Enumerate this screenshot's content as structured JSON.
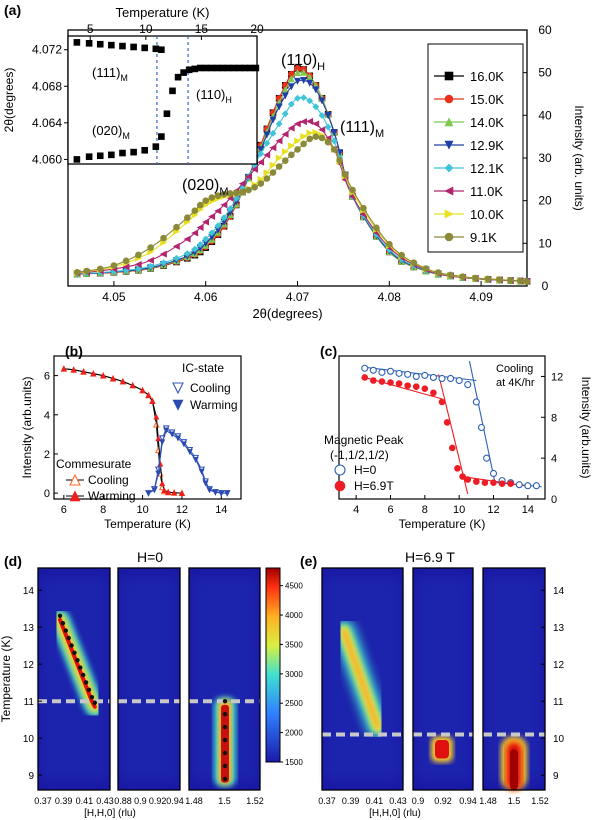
{
  "chart_data": [
    {
      "panel": "a",
      "type": "line",
      "xlabel": "2θ(degrees)",
      "ylabel": "Intensity (arb. units)",
      "xlim": [
        4.045,
        4.095
      ],
      "ylim": [
        0,
        60
      ],
      "x_ticks": [
        "4.05",
        "4.06",
        "4.07",
        "4.08",
        "4.09"
      ],
      "y_ticks": [
        "0",
        "10",
        "20",
        "30",
        "40",
        "50",
        "60"
      ],
      "x": [
        4.046,
        4.05,
        4.054,
        4.058,
        4.06,
        4.062,
        4.064,
        4.066,
        4.068,
        4.07,
        4.072,
        4.074,
        4.076,
        4.08,
        4.084,
        4.088,
        4.092,
        4.095
      ],
      "series": [
        {
          "name": "16.0K",
          "color": "#000000",
          "marker": "square",
          "values": [
            2.8,
            3.2,
            4.1,
            6.5,
            9.0,
            14,
            22,
            33,
            44,
            51,
            47,
            36,
            21,
            8,
            3.5,
            2,
            1.4,
            1.1
          ]
        },
        {
          "name": "15.0K",
          "color": "#e8301a",
          "marker": "circle",
          "values": [
            2.8,
            3.2,
            4.1,
            6.6,
            9.2,
            14,
            22,
            33,
            44,
            51,
            47,
            36,
            21,
            8,
            3.5,
            2,
            1.4,
            1.1
          ]
        },
        {
          "name": "14.0K",
          "color": "#7ec850",
          "marker": "triangle-up",
          "values": [
            2.8,
            3.3,
            4.2,
            6.8,
            9.5,
            14.5,
            22,
            32.5,
            43,
            50,
            47,
            36,
            21,
            8,
            3.5,
            2,
            1.4,
            1.1
          ]
        },
        {
          "name": "12.9K",
          "color": "#1f3fa8",
          "marker": "triangle-down",
          "values": [
            2.8,
            3.3,
            4.3,
            7.0,
            10,
            15,
            22.5,
            32,
            42,
            48,
            46,
            36,
            21,
            8.2,
            3.6,
            2,
            1.4,
            1.1
          ]
        },
        {
          "name": "12.1K",
          "color": "#3fc4d8",
          "marker": "diamond",
          "values": [
            2.9,
            3.4,
            4.6,
            7.6,
            11,
            16,
            23,
            31,
            38,
            44,
            42,
            34,
            21,
            8.5,
            3.7,
            2,
            1.4,
            1.1
          ]
        },
        {
          "name": "11.0K",
          "color": "#b2246e",
          "marker": "triangle-left",
          "values": [
            3.0,
            4.0,
            6.0,
            11,
            15,
            19,
            24,
            29,
            34,
            38,
            38,
            32,
            21,
            9,
            3.8,
            2,
            1.4,
            1.1
          ]
        },
        {
          "name": "10.0K",
          "color": "#e8e020",
          "marker": "triangle-right",
          "values": [
            3.1,
            4.5,
            8,
            15,
            19,
            21,
            22,
            25,
            30,
            34,
            36,
            32,
            22,
            9.5,
            4,
            2.1,
            1.5,
            1.1
          ]
        },
        {
          "name": "9.1K",
          "color": "#8a8a3a",
          "marker": "circle",
          "values": [
            3.2,
            4.8,
            9,
            16,
            20,
            21.5,
            22,
            24,
            28,
            32,
            35,
            32,
            22.5,
            9.8,
            4.1,
            2.2,
            1.5,
            1.1
          ]
        }
      ],
      "annotations": [
        "(110)",
        "H",
        "(111)",
        "M",
        "(020)",
        "M"
      ],
      "inset": {
        "xlabel": "Temperature (K)",
        "ylabel": "2θ(degrees)",
        "xlim": [
          3,
          20
        ],
        "ylim": [
          4.0595,
          4.0735
        ],
        "x_ticks": [
          "5",
          "10",
          "15",
          "20"
        ],
        "y_ticks": [
          "4.060",
          "4.064",
          "4.068",
          "4.072"
        ],
        "vlines": [
          11.0,
          13.8
        ],
        "series": [
          {
            "name": "(111)M",
            "x": [
              3.8,
              4.9,
              5.9,
              6.9,
              7.9,
              8.9,
              9.9,
              10.9,
              11.4
            ],
            "values": [
              4.0728,
              4.0727,
              4.0726,
              4.0725,
              4.0724,
              4.0723,
              4.0722,
              4.0721,
              4.072
            ]
          },
          {
            "name": "(020)M",
            "x": [
              3.8,
              4.9,
              5.9,
              6.9,
              7.9,
              8.9,
              9.9,
              10.9
            ],
            "values": [
              4.06,
              4.0603,
              4.0604,
              4.0605,
              4.0607,
              4.0608,
              4.061,
              4.0614
            ]
          },
          {
            "name": "(110)H",
            "x": [
              11.4,
              11.9,
              12.4,
              12.9,
              13.4,
              13.9,
              14.4,
              14.9,
              15.4,
              15.9,
              16.4,
              16.9,
              17.4,
              17.9,
              18.4,
              18.9,
              19.4,
              19.9
            ],
            "values": [
              4.0625,
              4.065,
              4.0675,
              4.069,
              4.0695,
              4.0698,
              4.0699,
              4.07,
              4.07,
              4.07,
              4.07,
              4.07,
              4.07,
              4.07,
              4.07,
              4.07,
              4.07,
              4.07
            ]
          }
        ],
        "annotations": [
          "(111)",
          "M",
          "(110)",
          "H",
          "(020)",
          "M"
        ]
      }
    },
    {
      "panel": "b",
      "type": "line",
      "xlabel": "Temperature (K)",
      "ylabel": "Intensity (arb.units)",
      "xlim": [
        5.5,
        15
      ],
      "ylim": [
        -0.3,
        7
      ],
      "x_ticks": [
        "6",
        "8",
        "10",
        "12",
        "14"
      ],
      "y_ticks": [
        "0",
        "2",
        "4",
        "6"
      ],
      "legend_groups": [
        "Commesurate",
        "IC-state"
      ],
      "series": [
        {
          "name": "Cooling",
          "group": "Commesurate",
          "color": "#ff6a2a",
          "marker": "open-triangle-up",
          "x": [
            6,
            6.5,
            7,
            7.5,
            8,
            8.5,
            9,
            9.5,
            10,
            10.3,
            10.5,
            10.7,
            10.8,
            10.9,
            11,
            11.1,
            11.3,
            11.6,
            12
          ],
          "values": [
            6.35,
            6.3,
            6.2,
            6.1,
            6.0,
            5.85,
            5.7,
            5.5,
            5.25,
            5.0,
            4.7,
            3.5,
            2.2,
            1.0,
            0.3,
            0.1,
            0.05,
            0.02,
            0
          ]
        },
        {
          "name": "Warming",
          "group": "Commesurate",
          "color": "#f01e1e",
          "marker": "triangle-up",
          "x": [
            6,
            6.5,
            7,
            7.5,
            8,
            8.5,
            9,
            9.5,
            10,
            10.3,
            10.5,
            10.7,
            10.8,
            10.9,
            11,
            11.1,
            11.3,
            11.6,
            12
          ],
          "values": [
            6.35,
            6.3,
            6.2,
            6.1,
            6.0,
            5.85,
            5.7,
            5.5,
            5.25,
            5.0,
            4.7,
            3.9,
            2.8,
            1.5,
            0.5,
            0.15,
            0.05,
            0.02,
            0
          ]
        },
        {
          "name": "Cooling",
          "group": "IC-state",
          "color": "#3355bb",
          "marker": "open-triangle-down",
          "x": [
            10.3,
            10.6,
            10.8,
            11,
            11.2,
            11.5,
            11.8,
            12.1,
            12.4,
            12.7,
            13,
            13.2,
            13.4,
            13.7,
            14,
            14.3
          ],
          "values": [
            0,
            0.2,
            1.2,
            2.8,
            3.3,
            3.1,
            2.9,
            2.6,
            2.2,
            1.8,
            1.2,
            0.6,
            0.2,
            0.05,
            0,
            0
          ]
        },
        {
          "name": "Warming",
          "group": "IC-state",
          "color": "#2a4bb0",
          "marker": "triangle-down",
          "x": [
            10.3,
            10.6,
            10.8,
            11,
            11.2,
            11.5,
            11.8,
            12.1,
            12.4,
            12.7,
            13,
            13.2,
            13.4,
            13.7,
            14,
            14.3
          ],
          "values": [
            0,
            0.15,
            1.0,
            2.6,
            3.2,
            3.0,
            2.8,
            2.5,
            2.1,
            1.7,
            1.1,
            0.5,
            0.15,
            0.05,
            0,
            0
          ]
        }
      ]
    },
    {
      "panel": "c",
      "type": "scatter",
      "xlabel": "Temperature (K)",
      "ylabel": "Intensity (arb.units)",
      "xlim": [
        3,
        15
      ],
      "ylim": [
        0,
        14
      ],
      "x_ticks": [
        "4",
        "6",
        "8",
        "10",
        "12",
        "14"
      ],
      "y_ticks": [
        "0",
        "4",
        "8",
        "12"
      ],
      "legend_title": [
        "Magnetic Peak",
        "(-1,1/2,1/2)"
      ],
      "note": [
        "Cooling",
        "at 4K/hr"
      ],
      "series": [
        {
          "name": "H=0",
          "color": "#2b5fb5",
          "marker": "open-circle",
          "x": [
            4.5,
            5,
            5.5,
            6,
            6.5,
            7,
            7.5,
            8,
            8.5,
            9,
            9.5,
            10,
            10.5,
            11,
            11.3,
            11.6,
            12,
            12.5,
            13,
            13.5,
            14,
            14.5
          ],
          "values": [
            12.8,
            12.6,
            12.4,
            12.5,
            12.3,
            12.2,
            12.0,
            12.1,
            11.9,
            11.8,
            11.8,
            11.6,
            11.2,
            9.5,
            7,
            4,
            2.5,
            1.8,
            1.6,
            1.4,
            1.3,
            1.3
          ]
        },
        {
          "name": "H=6.9T",
          "color": "#ee1c24",
          "marker": "circle",
          "x": [
            4.5,
            5,
            5.5,
            6,
            6.5,
            7,
            7.5,
            8,
            8.5,
            9,
            9.3,
            9.6,
            9.9,
            10.2,
            10.5,
            11,
            11.5,
            12,
            12.5,
            13
          ],
          "values": [
            11.9,
            11.6,
            11.5,
            11.4,
            11.3,
            11.1,
            11.0,
            10.8,
            10.4,
            9.5,
            7.5,
            5,
            3,
            2.2,
            1.9,
            1.7,
            1.6,
            1.6,
            1.5,
            1.5
          ]
        }
      ]
    },
    {
      "panel": "d",
      "type": "heatmap",
      "title": "H=0",
      "ylabel": "Temperature (K)",
      "xlabel": "[H,H,0] (rlu)",
      "ylim": [
        8.6,
        14.6
      ],
      "y_ticks": [
        "9",
        "10",
        "11",
        "12",
        "13",
        "14"
      ],
      "subpanels": [
        {
          "x_ticks": [
            "0.37",
            "0.39",
            "0.41",
            "0.43"
          ]
        },
        {
          "x_ticks": [
            "0.88",
            "0.9",
            "0.92",
            "0.94"
          ]
        },
        {
          "x_ticks": [
            "1.48",
            "1.5",
            "1.52"
          ]
        }
      ],
      "dashed_line_T": 11.0,
      "colorbar": {
        "min": 1500,
        "max": 4800,
        "ticks": [
          "1500",
          "2000",
          "2500",
          "3000",
          "3500",
          "4000",
          "4500"
        ]
      }
    },
    {
      "panel": "e",
      "type": "heatmap",
      "title": "H=6.9 T",
      "xlabel": "[H,H,0] (rlu)",
      "ylim": [
        8.6,
        14.6
      ],
      "y_ticks": [
        "9",
        "10",
        "11",
        "12",
        "13",
        "14"
      ],
      "subpanels": [
        {
          "x_ticks": [
            "0.37",
            "0.39",
            "0.41",
            "0.43"
          ]
        },
        {
          "x_ticks": [
            "0.9",
            "0.92",
            "0.94"
          ]
        },
        {
          "x_ticks": [
            "1.48",
            "1.5",
            "1.52"
          ]
        }
      ],
      "dashed_line_T": 10.1
    }
  ],
  "labels": {
    "a": "(a)",
    "b": "(b)",
    "c": "(c)",
    "d": "(d)",
    "e": "(e)"
  }
}
